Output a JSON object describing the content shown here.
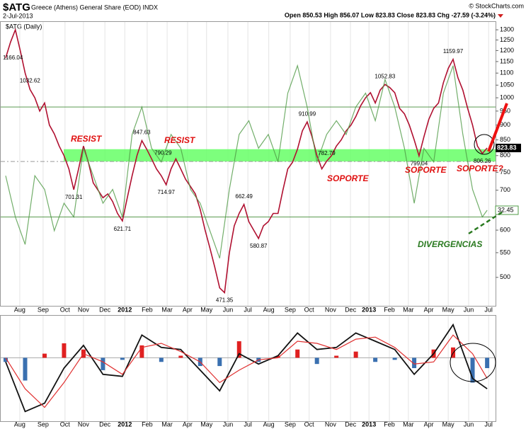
{
  "header": {
    "symbol": "$ATG",
    "name": "Greece (Athens) General Share (EOD) INDX",
    "date": "2-Jul-2013",
    "quote": "Open 850.53 High 856.07 Low 823.83 Close 823.83 Chg -27.59 (-3.24%)",
    "credit": "© StockCharts.com"
  },
  "chart_data": [
    {
      "type": "line",
      "log_scale": true,
      "xlim": [
        0,
        100
      ],
      "xticks": [
        {
          "value": 2.9,
          "label": "Aug"
        },
        {
          "value": 7.7,
          "label": "Sep"
        },
        {
          "value": 12.2,
          "label": "Oct"
        },
        {
          "value": 16,
          "label": "Nov"
        },
        {
          "value": 20.4,
          "label": "Dec"
        },
        {
          "value": 24.5,
          "label": "2012"
        },
        {
          "value": 29.1,
          "label": "Feb"
        },
        {
          "value": 33.2,
          "label": "Mar"
        },
        {
          "value": 37.4,
          "label": "Apr"
        },
        {
          "value": 41.3,
          "label": "May"
        },
        {
          "value": 45.7,
          "label": "Jun"
        },
        {
          "value": 49.8,
          "label": "Jul"
        },
        {
          "value": 54.1,
          "label": "Aug"
        },
        {
          "value": 58.5,
          "label": "Sep"
        },
        {
          "value": 62.4,
          "label": "Oct"
        },
        {
          "value": 66.8,
          "label": "Nov"
        },
        {
          "value": 70.9,
          "label": "Dec"
        },
        {
          "value": 74.7,
          "label": "2013"
        },
        {
          "value": 78.9,
          "label": "Feb"
        },
        {
          "value": 82.8,
          "label": "Mar"
        },
        {
          "value": 87,
          "label": "Apr"
        },
        {
          "value": 91,
          "label": "May"
        },
        {
          "value": 95.2,
          "label": "Jun"
        },
        {
          "value": 99.3,
          "label": "Jul"
        }
      ],
      "ylim": [
        448,
        1340
      ],
      "yticks": [
        500,
        550,
        600,
        650,
        700,
        750,
        800,
        850,
        900,
        950,
        1000,
        1050,
        1100,
        1150,
        1200,
        1250,
        1300
      ],
      "y2lim": [
        -2.3,
        100.9
      ],
      "y2_levels": [
        30,
        70
      ],
      "band": [
        782,
        820
      ],
      "band_color": "#66ff66",
      "series": [
        {
          "name": "$ATG (Daily)",
          "color": "#b01030",
          "x": [
            0,
            1,
            2,
            3,
            4,
            5,
            6,
            7,
            8,
            9,
            10,
            11,
            12,
            13,
            14,
            15,
            16,
            17,
            18,
            19,
            20,
            21,
            22,
            23,
            24,
            25,
            26,
            27,
            28,
            29,
            30,
            31,
            32,
            33,
            34,
            35,
            36,
            37,
            38,
            39,
            40,
            41,
            42,
            43,
            44,
            45,
            46,
            47,
            48,
            49,
            50,
            51,
            52,
            53,
            54,
            55,
            56,
            57,
            58,
            59,
            60,
            61,
            62,
            63,
            64,
            65,
            66,
            67,
            68,
            69,
            70,
            71,
            72,
            73,
            74,
            75,
            76,
            77,
            78,
            79,
            80,
            81,
            82,
            83,
            84,
            85,
            86,
            87,
            88,
            89,
            90,
            91,
            92,
            93,
            94,
            95,
            96,
            97,
            98,
            99
          ],
          "values": [
            1166.04,
            1240,
            1300,
            1200,
            1100,
            1032.62,
            1000,
            950,
            980,
            900,
            870,
            830,
            800,
            760,
            701.31,
            760,
            830,
            780,
            720,
            700,
            680,
            690,
            670,
            640,
            621.71,
            680,
            740,
            800,
            847.63,
            820,
            790.29,
            760,
            740,
            714.97,
            760,
            790,
            760,
            730,
            710,
            690,
            650,
            600,
            560,
            520,
            480,
            471.35,
            550,
            610,
            640,
            662.49,
            620,
            600,
            580.87,
            610,
            620,
            640,
            640,
            700,
            760,
            780,
            820,
            880,
            910.99,
            860,
            800,
            760,
            782.79,
            800,
            830,
            850,
            880,
            900,
            930,
            970,
            1000,
            1020,
            980,
            1030,
            1052.83,
            1040,
            1020,
            960,
            940,
            900,
            850,
            799.04,
            860,
            920,
            960,
            980,
            1060,
            1120,
            1159.97,
            1080,
            1030,
            960,
            900,
            830,
            806.26,
            823.83
          ]
        },
        {
          "name": "",
          "color": "#4f9a45",
          "axis": "y2",
          "x": [
            0,
            2,
            4,
            6,
            8,
            10,
            12,
            14,
            16,
            18,
            20,
            22,
            24,
            26,
            28,
            30,
            32,
            34,
            36,
            38,
            40,
            42,
            44,
            46,
            48,
            50,
            52,
            54,
            56,
            58,
            60,
            62,
            64,
            66,
            68,
            70,
            72,
            74,
            76,
            78,
            80,
            82,
            84,
            86,
            88,
            90,
            92,
            94,
            96,
            98,
            99
          ],
          "values": [
            45,
            30,
            20,
            45,
            40,
            25,
            35,
            30,
            55,
            45,
            35,
            40,
            30,
            60,
            70,
            55,
            50,
            60,
            55,
            40,
            35,
            25,
            15,
            40,
            60,
            65,
            55,
            60,
            50,
            75,
            85,
            70,
            50,
            60,
            65,
            60,
            70,
            75,
            65,
            80,
            70,
            55,
            35,
            55,
            50,
            75,
            85,
            60,
            40,
            30,
            32.45
          ]
        }
      ],
      "annotations": [
        "RESIST",
        "RESIST",
        "SOPORTE",
        "SOPORTE",
        "SOPORTE?",
        "DIVERGENCIAS"
      ]
    },
    {
      "type": "macd",
      "ylim": [
        -3,
        2
      ],
      "x": [
        0,
        4,
        8,
        12,
        16,
        20,
        24,
        28,
        32,
        36,
        40,
        44,
        48,
        52,
        56,
        60,
        64,
        68,
        72,
        76,
        80,
        84,
        88,
        92,
        96,
        99
      ],
      "histogram": [
        -0.2,
        -1.1,
        0.2,
        0.7,
        0.4,
        -0.6,
        -0.1,
        0.6,
        -0.2,
        0.1,
        -0.4,
        -0.4,
        0.8,
        -0.2,
        0.1,
        0.4,
        -0.3,
        0.1,
        0.3,
        -0.2,
        -0.1,
        -0.5,
        0.4,
        0.5,
        -1.2,
        -0.5
      ],
      "pos_color": "#e02020",
      "neg_color": "#3a70b0",
      "macd": [
        -0.2,
        -2.6,
        -2.2,
        -0.5,
        0.6,
        -0.8,
        -0.9,
        1.1,
        0.5,
        0.4,
        -0.6,
        -1.6,
        0.2,
        -0.3,
        0.1,
        1.2,
        0.4,
        0.5,
        1.2,
        0.8,
        0.4,
        -0.8,
        0.2,
        1.6,
        -1.0,
        -1.5
      ],
      "macd_color": "#111111",
      "signal": [
        0,
        -1.5,
        -2.4,
        -1.2,
        0.2,
        -0.2,
        -0.8,
        0.5,
        0.7,
        0.3,
        -0.2,
        -1.2,
        -0.6,
        -0.1,
        0,
        0.8,
        0.7,
        0.4,
        0.9,
        1.0,
        0.5,
        -0.3,
        -0.2,
        1.1,
        0.2,
        -1.0
      ],
      "signal_color": "#e03030"
    }
  ]
}
